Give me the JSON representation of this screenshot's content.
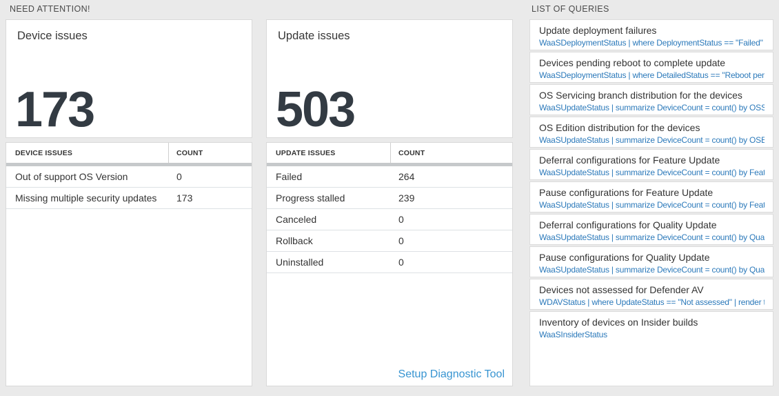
{
  "colors": {
    "page_background": "#eaeaea",
    "query_link_blue": "#2b79ba",
    "diagnostic_link_blue": "#3794d1",
    "big_number_color": "#333b43"
  },
  "need_attention": {
    "header": "NEED ATTENTION!",
    "device_card": {
      "title": "Device issues",
      "count": "173",
      "table": {
        "columns": [
          "DEVICE ISSUES",
          "COUNT"
        ],
        "rows": [
          {
            "label": "Out of support OS Version",
            "count": "0"
          },
          {
            "label": "Missing multiple security updates",
            "count": "173"
          }
        ]
      }
    },
    "update_card": {
      "title": "Update issues",
      "count": "503",
      "table": {
        "columns": [
          "UPDATE ISSUES",
          "COUNT"
        ],
        "rows": [
          {
            "label": "Failed",
            "count": "264"
          },
          {
            "label": "Progress stalled",
            "count": "239"
          },
          {
            "label": "Canceled",
            "count": "0"
          },
          {
            "label": "Rollback",
            "count": "0"
          },
          {
            "label": "Uninstalled",
            "count": "0"
          }
        ]
      },
      "footer_link": "Setup Diagnostic Tool"
    }
  },
  "queries": {
    "header": "LIST OF QUERIES",
    "items": [
      {
        "title": "Update deployment failures",
        "query": "WaaSDeploymentStatus | where DeploymentStatus == \"Failed\" |..."
      },
      {
        "title": "Devices pending reboot to complete update",
        "query": "WaaSDeploymentStatus | where DetailedStatus == \"Reboot pend..."
      },
      {
        "title": "OS Servicing branch distribution for the devices",
        "query": "WaaSUpdateStatus | summarize DeviceCount = count() by OSSer..."
      },
      {
        "title": "OS Edition distribution for the devices",
        "query": "WaaSUpdateStatus | summarize DeviceCount = count() by OSEdit..."
      },
      {
        "title": "Deferral configurations for Feature Update",
        "query": "WaaSUpdateStatus | summarize DeviceCount = count() by Featur..."
      },
      {
        "title": "Pause configurations for Feature Update",
        "query": "WaaSUpdateStatus | summarize DeviceCount = count() by Featur..."
      },
      {
        "title": "Deferral configurations for Quality Update",
        "query": "WaaSUpdateStatus | summarize DeviceCount = count() by Qualit..."
      },
      {
        "title": "Pause configurations for Quality Update",
        "query": "WaaSUpdateStatus | summarize DeviceCount = count() by Qualit..."
      },
      {
        "title": "Devices not assessed for Defender AV",
        "query": "WDAVStatus | where UpdateStatus == \"Not assessed\" | render ta..."
      },
      {
        "title": "Inventory of devices on Insider builds",
        "query": "WaaSInsiderStatus"
      }
    ]
  }
}
